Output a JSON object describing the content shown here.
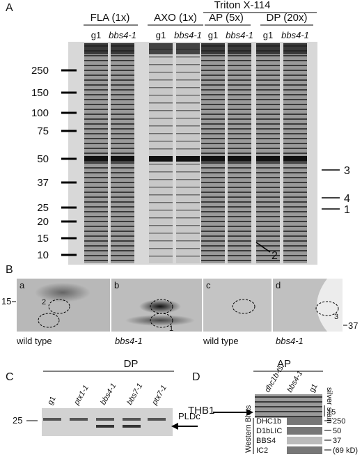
{
  "panel_a": {
    "label": "A",
    "bracket": "Triton X-114",
    "groups": [
      "FLA (1x)",
      "AXO (1x)",
      "AP (5x)",
      "DP (20x)"
    ],
    "lanes": [
      "g1",
      "bbs4-1",
      "g1",
      "bbs4-1",
      "g1",
      "bbs4-1",
      "g1",
      "bbs4-1"
    ],
    "markers": [
      "250",
      "150",
      "100",
      "75",
      "50",
      "37",
      "25",
      "20",
      "15",
      "10"
    ],
    "arrows": [
      "3",
      "4",
      "1",
      "2"
    ]
  },
  "panel_b": {
    "label": "B",
    "marker_left": "15",
    "marker_right": "37",
    "images": [
      "a",
      "b",
      "c",
      "d"
    ],
    "spots": [
      "2",
      "1",
      "3"
    ],
    "captions": [
      "wild type",
      "bbs4-1",
      "wild type",
      "bbs4-1"
    ]
  },
  "panel_c": {
    "label": "C",
    "header": "DP",
    "lanes": [
      "g1",
      "ptx1-1",
      "bbs4-1",
      "bbs7-1",
      "ptx7-1"
    ],
    "marker": "25",
    "band": "PLDc"
  },
  "panel_d": {
    "label": "D",
    "header": "AP",
    "lanes": [
      "dhc1b-ts",
      "bbs4-1",
      "g1"
    ],
    "band": "THB1",
    "stain": "silver stain",
    "stain_marker": "15",
    "blot_group": "Western Blots",
    "rows": [
      "DHC1b",
      "D1bLIC",
      "BBS4",
      "IC2"
    ],
    "row_markers": [
      "250",
      "50",
      "37",
      "(69 kD)"
    ]
  }
}
